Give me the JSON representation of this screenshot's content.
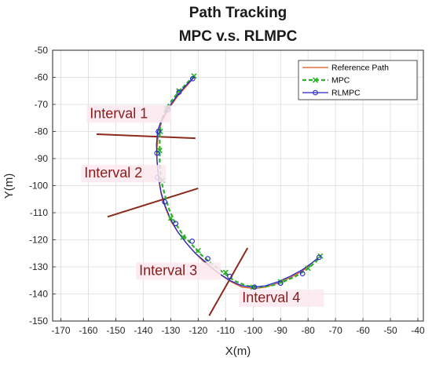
{
  "chart_data": {
    "type": "line",
    "title": "Path Tracking",
    "subtitle": "MPC v.s. RLMPC",
    "xlabel": "X(m)",
    "ylabel": "Y(m)",
    "xlim": [
      -173,
      -38
    ],
    "ylim": [
      -150,
      -50
    ],
    "xticks": [
      -170,
      -160,
      -150,
      -140,
      -130,
      -120,
      -110,
      -100,
      -90,
      -80,
      -70,
      -60,
      -50,
      -40
    ],
    "yticks": [
      -50,
      -60,
      -70,
      -80,
      -90,
      -100,
      -110,
      -120,
      -130,
      -140,
      -150
    ],
    "grid": true,
    "legend_position": "top-right",
    "series": [
      {
        "name": "Reference Path",
        "color": "#d95319",
        "style": "solid",
        "marker": "none",
        "x": [
          -121.5,
          -124,
          -127.5,
          -131,
          -133.5,
          -134.5,
          -135,
          -135,
          -134.5,
          -133.5,
          -132,
          -130,
          -127.5,
          -124.5,
          -121,
          -117,
          -112.5,
          -108,
          -104,
          -99.5,
          -95.5,
          -91,
          -86.5,
          -82,
          -78.5,
          -75.5
        ],
        "y": [
          -60,
          -63,
          -67,
          -72,
          -77,
          -81,
          -86,
          -91,
          -97,
          -103,
          -108,
          -113,
          -117,
          -121,
          -125,
          -129,
          -132.5,
          -135.5,
          -137.5,
          -138,
          -137.5,
          -136,
          -134,
          -131.5,
          -128.5,
          -126
        ]
      },
      {
        "name": "MPC",
        "color": "#2ab02a",
        "style": "dashed",
        "marker": "x",
        "x": [
          -121.5,
          -124.5,
          -128,
          -131.5,
          -133.5,
          -134,
          -134,
          -134,
          -133.5,
          -132,
          -130.5,
          -128.5,
          -126,
          -123,
          -119.5,
          -115.5,
          -111,
          -107,
          -102.5,
          -98,
          -93.5,
          -89,
          -84.5,
          -80.5,
          -77,
          -75.5
        ],
        "y": [
          -59.5,
          -62.5,
          -66.5,
          -71,
          -76,
          -81,
          -86,
          -92,
          -98,
          -104,
          -109,
          -113.5,
          -117.5,
          -121,
          -125,
          -128.5,
          -132,
          -135,
          -137,
          -137.5,
          -137,
          -135.5,
          -133.5,
          -131,
          -128,
          -126
        ],
        "marker_x": [
          -121.5,
          -127,
          -131.5,
          -133.8,
          -134,
          -133,
          -130,
          -125.5,
          -120,
          -110,
          -100,
          -90,
          -80,
          -75.5
        ],
        "marker_y": [
          -59.5,
          -65,
          -71.5,
          -80,
          -87,
          -98,
          -112,
          -119,
          -124,
          -132,
          -137.5,
          -135.5,
          -130.5,
          -126
        ]
      },
      {
        "name": "RLMPC",
        "color": "#2525c9",
        "style": "solid",
        "marker": "o",
        "x": [
          -121.5,
          -124,
          -127.5,
          -131,
          -133.5,
          -134.8,
          -135.2,
          -135,
          -134.5,
          -133.5,
          -132,
          -130,
          -127.5,
          -124.5,
          -121,
          -117,
          -113,
          -108.5,
          -104,
          -100,
          -95.5,
          -91,
          -86.5,
          -82,
          -78.5,
          -76
        ],
        "y": [
          -60,
          -62.5,
          -66.5,
          -71.5,
          -76,
          -80,
          -85,
          -90.5,
          -96.5,
          -102.5,
          -107.5,
          -112.5,
          -117,
          -121,
          -125,
          -128.5,
          -132,
          -135,
          -137,
          -137.5,
          -137,
          -135.5,
          -133.5,
          -131,
          -128.5,
          -126.5
        ],
        "marker_x": [
          -122,
          -127,
          -131,
          -134.5,
          -135,
          -134.8,
          -132.2,
          -128.2,
          -122.2,
          -116.5,
          -108.5,
          -99.5,
          -90,
          -82,
          -76
        ],
        "marker_y": [
          -60.5,
          -65.5,
          -72,
          -80,
          -88,
          -97,
          -106,
          -114,
          -120.5,
          -127,
          -133.5,
          -137.5,
          -136,
          -132.5,
          -126.5
        ]
      }
    ],
    "interval_lines": [
      {
        "x": [
          -157,
          -121
        ],
        "y": [
          -81,
          -82.5
        ]
      },
      {
        "x": [
          -153,
          -120
        ],
        "y": [
          -111.5,
          -101
        ]
      },
      {
        "x": [
          -116,
          -102
        ],
        "y": [
          -148,
          -123
        ]
      }
    ],
    "annotations": [
      {
        "text": "Interval 1",
        "x": -159.5,
        "y": -75
      },
      {
        "text": "Interval 2",
        "x": -161.5,
        "y": -97
      },
      {
        "text": "Interval 3",
        "x": -141.5,
        "y": -133
      },
      {
        "text": "Interval 4",
        "x": -104,
        "y": -143
      }
    ]
  }
}
